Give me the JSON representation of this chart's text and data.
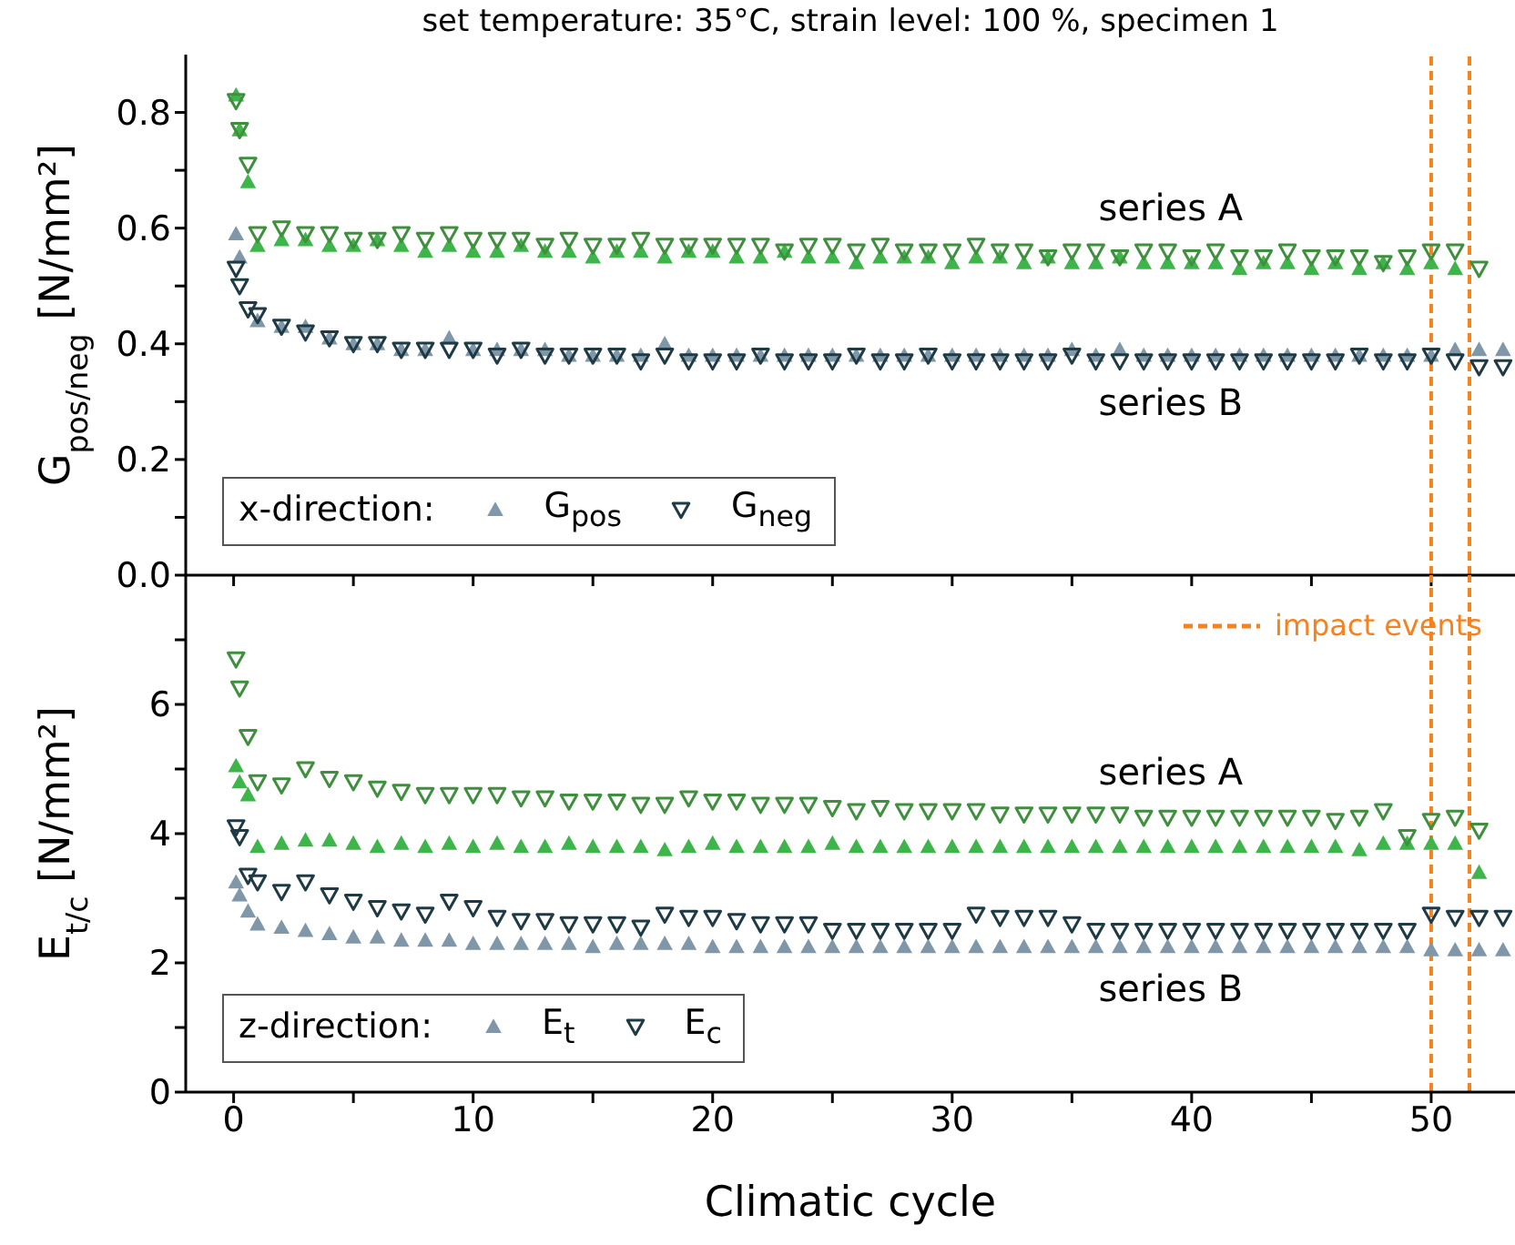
{
  "chart_data": [
    {
      "type": "scatter",
      "title": "set temperature: 35°C, strain level: 100 %, specimen 1",
      "ylabel": "G$_{pos/neg}$ [N/mm²]",
      "legend_title": "x-direction:",
      "legend": "bottom left",
      "tick_labels": "y",
      "x": [
        0.1,
        0.25,
        0.6,
        1,
        2,
        3,
        4,
        5,
        6,
        7,
        8,
        9,
        10,
        11,
        12,
        13,
        14,
        15,
        16,
        17,
        18,
        19,
        20,
        21,
        22,
        23,
        24,
        25,
        26,
        27,
        28,
        29,
        30,
        31,
        32,
        33,
        34,
        35,
        36,
        37,
        38,
        39,
        40,
        41,
        42,
        43,
        44,
        45,
        46,
        47,
        48,
        49,
        50,
        51,
        52,
        53
      ],
      "xlim": [
        -2,
        53.5
      ],
      "xticks": [
        0,
        {
          "value": 5,
          "label": null
        },
        10,
        {
          "value": 15,
          "label": null
        },
        20,
        {
          "value": 25,
          "label": null
        },
        30,
        {
          "value": 35,
          "label": null
        },
        40,
        {
          "value": 45,
          "label": null
        },
        50
      ],
      "ylim": [
        0,
        0.9
      ],
      "yticks": [
        "0.0",
        {
          "value": 0.1,
          "label": null
        },
        0.2,
        {
          "value": 0.3,
          "label": null
        },
        0.4,
        {
          "value": 0.5,
          "label": null
        },
        0.6,
        {
          "value": 0.7,
          "label": null
        },
        0.8
      ],
      "series": [
        {
          "name": "G$_{pos}$",
          "color": "#7f97a8",
          "marker": "triangle",
          "values": [
            0.59,
            0.55,
            null,
            0.44,
            0.43,
            0.43,
            0.41,
            0.4,
            0.4,
            0.39,
            0.39,
            0.41,
            0.39,
            0.39,
            0.39,
            0.39,
            0.38,
            0.38,
            0.38,
            0.38,
            0.4,
            0.38,
            0.38,
            0.38,
            0.38,
            0.38,
            0.38,
            0.38,
            0.38,
            0.38,
            0.38,
            0.38,
            0.38,
            0.38,
            0.38,
            0.38,
            0.38,
            0.39,
            0.38,
            0.39,
            0.38,
            0.38,
            0.38,
            0.38,
            0.38,
            0.38,
            0.38,
            0.38,
            0.38,
            0.38,
            0.38,
            0.38,
            0.38,
            0.39,
            0.39,
            0.39
          ]
        },
        {
          "name": "G$_{neg}$",
          "color": "#1e3a44",
          "marker": "triangle-down",
          "values": [
            0.53,
            0.5,
            0.46,
            0.45,
            0.43,
            0.42,
            0.41,
            0.4,
            0.4,
            0.39,
            0.39,
            0.39,
            0.39,
            0.38,
            0.39,
            0.38,
            0.38,
            0.38,
            0.38,
            0.37,
            0.38,
            0.37,
            0.37,
            0.37,
            0.38,
            0.37,
            0.37,
            0.37,
            0.38,
            0.37,
            0.37,
            0.38,
            0.37,
            0.37,
            0.37,
            0.37,
            0.37,
            0.38,
            0.37,
            0.37,
            0.37,
            0.37,
            0.37,
            0.37,
            0.37,
            0.37,
            0.37,
            0.37,
            0.37,
            0.38,
            0.37,
            0.37,
            0.38,
            0.37,
            0.36,
            0.36
          ]
        },
        {
          "color": "#3db54a",
          "marker": "triangle",
          "values": [
            0.83,
            0.77,
            0.68,
            0.57,
            0.58,
            0.58,
            0.57,
            0.57,
            0.58,
            0.57,
            0.56,
            0.57,
            0.56,
            0.56,
            0.57,
            0.56,
            0.56,
            0.55,
            0.56,
            0.56,
            0.55,
            0.56,
            0.56,
            0.55,
            0.55,
            0.56,
            0.55,
            0.55,
            0.54,
            0.55,
            0.55,
            0.55,
            0.54,
            0.55,
            0.55,
            0.54,
            0.55,
            0.54,
            0.54,
            0.55,
            0.54,
            0.54,
            0.54,
            0.54,
            0.53,
            0.54,
            0.54,
            0.53,
            0.54,
            0.53,
            0.54,
            0.53,
            0.54,
            0.53,
            null,
            null
          ]
        },
        {
          "color": "#3f8f3f",
          "marker": "triangle-down",
          "values": [
            0.82,
            0.77,
            0.71,
            0.59,
            0.6,
            0.59,
            0.59,
            0.58,
            0.58,
            0.59,
            0.58,
            0.59,
            0.58,
            0.58,
            0.58,
            0.57,
            0.58,
            0.57,
            0.57,
            0.58,
            0.57,
            0.57,
            0.57,
            0.57,
            0.57,
            0.56,
            0.57,
            0.57,
            0.56,
            0.57,
            0.56,
            0.56,
            0.56,
            0.57,
            0.56,
            0.56,
            0.55,
            0.56,
            0.56,
            0.55,
            0.56,
            0.56,
            0.55,
            0.56,
            0.55,
            0.55,
            0.56,
            0.55,
            0.55,
            0.55,
            0.54,
            0.55,
            0.56,
            0.56,
            0.53,
            null
          ]
        }
      ],
      "ref_lines": [
        {
          "axis": "x",
          "value": 50,
          "color": "#f5821f",
          "line_style": "dashed"
        },
        {
          "axis": "x",
          "value": 51.6,
          "color": "#f5821f",
          "line_style": "dashed"
        }
      ],
      "annotations": [
        "series A",
        "series B"
      ]
    },
    {
      "type": "scatter",
      "ylabel": "E$_{t/c}$ [N/mm²]",
      "xlabel": "Climatic cycle",
      "legend_title": "z-direction:",
      "legend": "bottom left",
      "x": [
        0.1,
        0.25,
        0.6,
        1,
        2,
        3,
        4,
        5,
        6,
        7,
        8,
        9,
        10,
        11,
        12,
        13,
        14,
        15,
        16,
        17,
        18,
        19,
        20,
        21,
        22,
        23,
        24,
        25,
        26,
        27,
        28,
        29,
        30,
        31,
        32,
        33,
        34,
        35,
        36,
        37,
        38,
        39,
        40,
        41,
        42,
        43,
        44,
        45,
        46,
        47,
        48,
        49,
        50,
        51,
        52,
        53
      ],
      "xlim": [
        -2,
        53.5
      ],
      "xticks": [
        0,
        {
          "value": 5,
          "label": null
        },
        10,
        {
          "value": 15,
          "label": null
        },
        20,
        {
          "value": 25,
          "label": null
        },
        30,
        {
          "value": 35,
          "label": null
        },
        40,
        {
          "value": 45,
          "label": null
        },
        50
      ],
      "ylim": [
        0,
        8
      ],
      "yticks": [
        0,
        {
          "value": 1,
          "label": null
        },
        2,
        {
          "value": 3,
          "label": null
        },
        4,
        {
          "value": 5,
          "label": null
        },
        6,
        {
          "value": 7,
          "label": null
        }
      ],
      "series": [
        {
          "name": "E$_{t}$",
          "color": "#7f97a8",
          "marker": "triangle",
          "values": [
            3.25,
            3.05,
            2.8,
            2.6,
            2.55,
            2.5,
            2.45,
            2.4,
            2.4,
            2.35,
            2.35,
            2.35,
            2.3,
            2.3,
            2.3,
            2.3,
            2.3,
            2.25,
            2.3,
            2.3,
            2.3,
            2.3,
            2.25,
            2.25,
            2.25,
            2.25,
            2.25,
            2.25,
            2.25,
            2.25,
            2.25,
            2.25,
            2.25,
            2.25,
            2.25,
            2.25,
            2.25,
            2.25,
            2.25,
            2.25,
            2.25,
            2.25,
            2.25,
            2.25,
            2.25,
            2.25,
            2.25,
            2.25,
            2.25,
            2.25,
            2.25,
            2.25,
            2.2,
            2.2,
            2.2,
            2.2
          ]
        },
        {
          "name": "E$_{c}$",
          "color": "#1e3a44",
          "marker": "triangle-down",
          "values": [
            4.1,
            3.95,
            3.35,
            3.25,
            3.1,
            3.25,
            3.05,
            2.95,
            2.85,
            2.8,
            2.75,
            2.95,
            2.85,
            2.7,
            2.65,
            2.65,
            2.6,
            2.6,
            2.6,
            2.55,
            2.75,
            2.7,
            2.7,
            2.65,
            2.6,
            2.6,
            2.6,
            2.5,
            2.5,
            2.5,
            2.5,
            2.5,
            2.5,
            2.75,
            2.7,
            2.7,
            2.7,
            2.6,
            2.5,
            2.5,
            2.5,
            2.5,
            2.5,
            2.5,
            2.5,
            2.5,
            2.5,
            2.5,
            2.5,
            2.5,
            2.5,
            2.5,
            2.75,
            2.7,
            2.7,
            2.7
          ]
        },
        {
          "color": "#3db54a",
          "marker": "triangle",
          "values": [
            5.05,
            4.8,
            4.6,
            3.8,
            3.85,
            3.9,
            3.9,
            3.85,
            3.8,
            3.85,
            3.8,
            3.85,
            3.8,
            3.85,
            3.8,
            3.8,
            3.85,
            3.8,
            3.8,
            3.8,
            3.75,
            3.8,
            3.85,
            3.8,
            3.8,
            3.8,
            3.8,
            3.85,
            3.8,
            3.8,
            3.8,
            3.8,
            3.8,
            3.8,
            3.8,
            3.8,
            3.8,
            3.8,
            3.8,
            3.8,
            3.8,
            3.8,
            3.8,
            3.8,
            3.8,
            3.8,
            3.8,
            3.8,
            3.8,
            3.75,
            3.85,
            3.85,
            3.85,
            3.85,
            3.4,
            null
          ]
        },
        {
          "color": "#3f8f3f",
          "marker": "triangle-down",
          "values": [
            6.7,
            6.25,
            5.5,
            4.8,
            4.75,
            5.0,
            4.85,
            4.8,
            4.7,
            4.65,
            4.6,
            4.6,
            4.6,
            4.6,
            4.55,
            4.55,
            4.5,
            4.5,
            4.5,
            4.45,
            4.45,
            4.55,
            4.5,
            4.5,
            4.45,
            4.45,
            4.45,
            4.4,
            4.35,
            4.4,
            4.35,
            4.35,
            4.35,
            4.35,
            4.3,
            4.3,
            4.3,
            4.3,
            4.3,
            4.3,
            4.25,
            4.25,
            4.25,
            4.25,
            4.25,
            4.25,
            4.25,
            4.25,
            4.2,
            4.25,
            4.35,
            3.95,
            4.2,
            4.25,
            4.05,
            null
          ]
        }
      ],
      "ref_lines": [
        {
          "axis": "x",
          "value": 50,
          "color": "#f5821f",
          "line_style": "dashed",
          "label": "impact events"
        },
        {
          "axis": "x",
          "value": 51.6,
          "color": "#f5821f",
          "line_style": "dashed"
        }
      ],
      "annotations": [
        "series A",
        "series B"
      ]
    }
  ]
}
